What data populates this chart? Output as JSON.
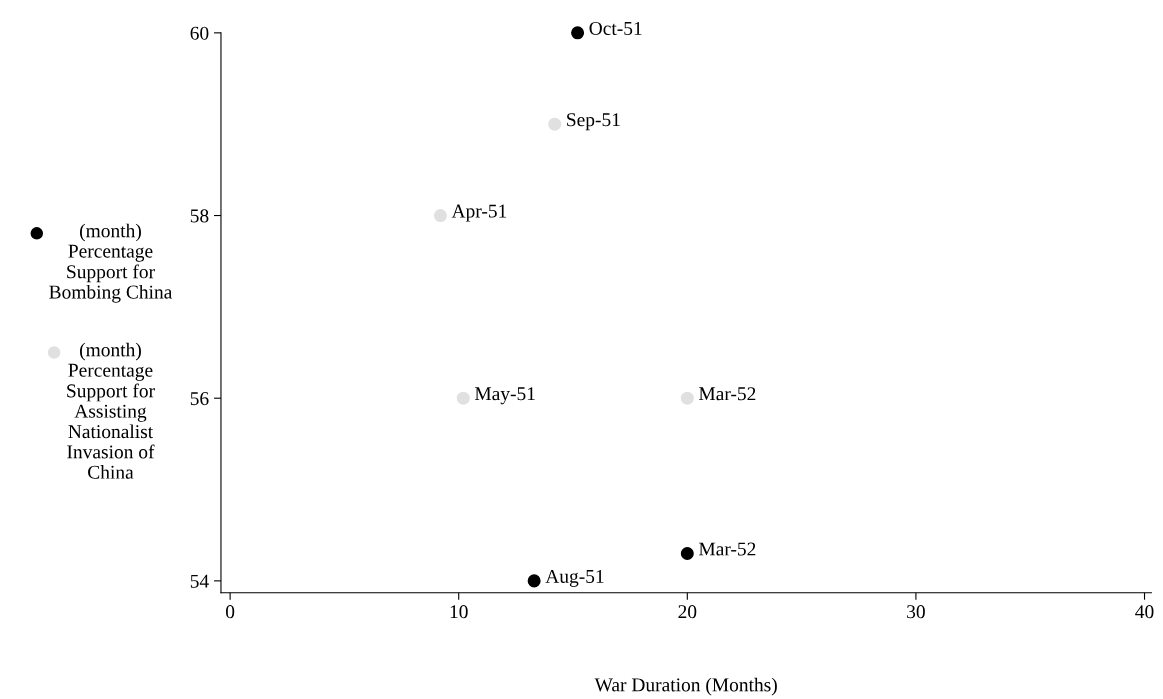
{
  "chart_data": {
    "type": "scatter",
    "xlabel": "War Duration (Months)",
    "series": [
      {
        "name": "(month) Percentage Support for Bombing China",
        "color": "#000000",
        "marker": "circle",
        "x": [
          15.2,
          13.3,
          20.0
        ],
        "values": [
          60.0,
          54.0,
          54.3
        ],
        "value_labels": [
          "Oct-51",
          "Aug-51",
          "Mar-52"
        ]
      },
      {
        "name": "(month) Percentage Support for Assisting Nationalist Invasion of China",
        "color": "#e0e0e0",
        "marker": "circle",
        "x": [
          14.2,
          9.2,
          10.2,
          20.0
        ],
        "values": [
          59.0,
          58.0,
          56.0,
          56.0
        ],
        "value_labels": [
          "Sep-51",
          "Apr-51",
          "May-51",
          "Mar-52"
        ]
      }
    ],
    "xlim": [
      -0.4,
      40.3
    ],
    "ylim": [
      53.87,
      60.0
    ],
    "xticks": [
      0,
      10,
      20,
      30,
      40
    ],
    "yticks": [
      54,
      56,
      58,
      60
    ],
    "grid": false,
    "legend": "left"
  }
}
